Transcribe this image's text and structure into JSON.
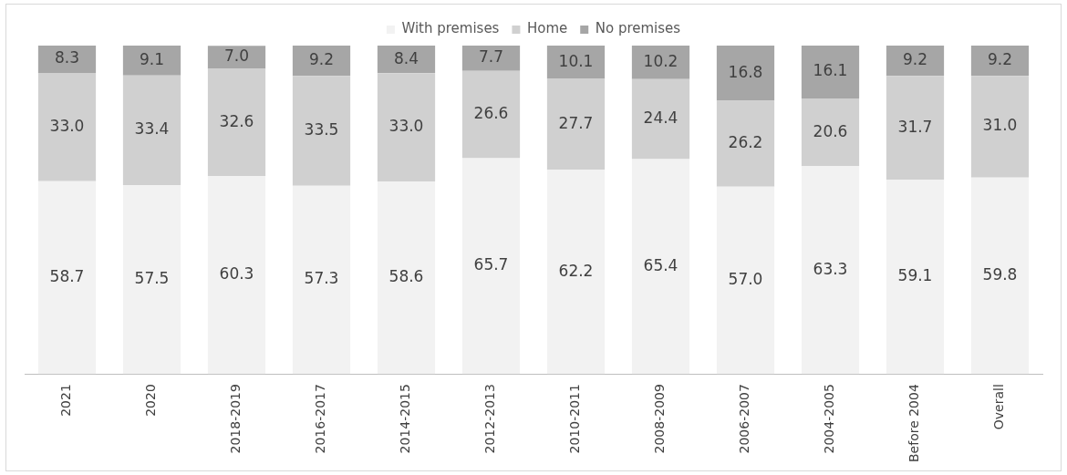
{
  "chart_data": {
    "type": "bar",
    "stacked": true,
    "legend": "top",
    "grid": false,
    "categories": [
      "2021",
      "2020",
      "2018-2019",
      "2016-2017",
      "2014-2015",
      "2012-2013",
      "2010-2011",
      "2008-2009",
      "2006-2007",
      "2004-2005",
      "Before 2004",
      "Overall"
    ],
    "series": [
      {
        "name": "With premises",
        "color": "#f2f2f2",
        "values": [
          58.7,
          57.5,
          60.3,
          57.3,
          58.6,
          65.7,
          62.2,
          65.4,
          57.0,
          63.3,
          59.1,
          59.8
        ],
        "value_labels": [
          "58.7",
          "57.5",
          "60.3",
          "57.3",
          "58.6",
          "65.7",
          "62.2",
          "65.4",
          "57.0",
          "63.3",
          "59.1",
          "59.8"
        ]
      },
      {
        "name": "Home",
        "color": "#d0d0d0",
        "values": [
          33.0,
          33.4,
          32.6,
          33.5,
          33.0,
          26.6,
          27.7,
          24.4,
          26.2,
          20.6,
          31.7,
          31.0
        ],
        "value_labels": [
          "33.0",
          "33.4",
          "32.6",
          "33.5",
          "33.0",
          "26.6",
          "27.7",
          "24.4",
          "26.2",
          "20.6",
          "31.7",
          "31.0"
        ]
      },
      {
        "name": "No premises",
        "color": "#a6a6a6",
        "values": [
          8.3,
          9.1,
          7.0,
          9.2,
          8.4,
          7.7,
          10.1,
          10.2,
          16.8,
          16.1,
          9.2,
          9.2
        ],
        "value_labels": [
          "8.3",
          "9.1",
          "7.0",
          "9.2",
          "8.4",
          "7.7",
          "10.1",
          "10.2",
          "16.8",
          "16.1",
          "9.2",
          "9.2"
        ]
      }
    ]
  }
}
